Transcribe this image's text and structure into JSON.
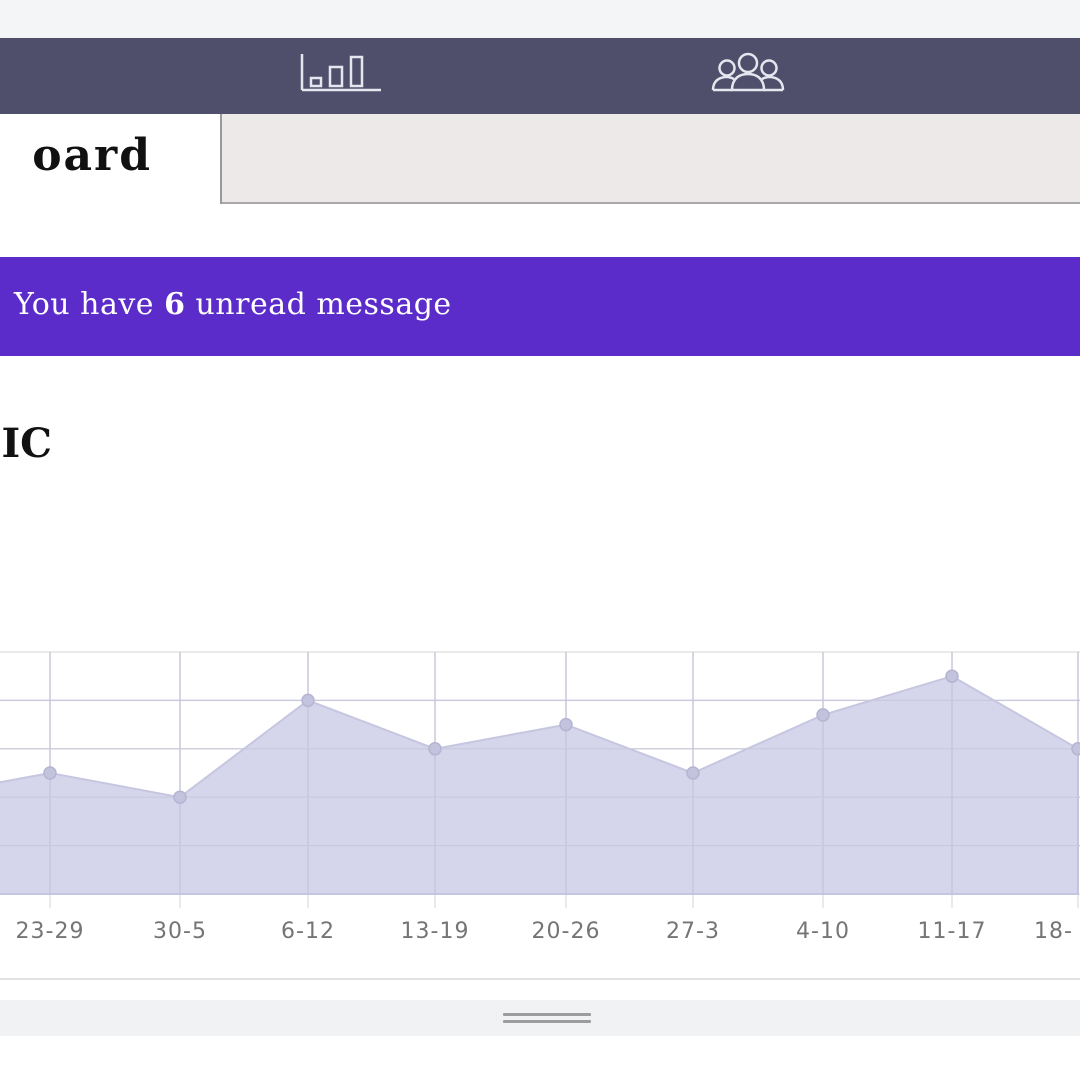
{
  "nav": {
    "icons": [
      "bar-chart-icon",
      "users-icon"
    ]
  },
  "tabs": {
    "active_label": "oard"
  },
  "banner": {
    "prefix": "You have ",
    "count": "6",
    "suffix": " unread message",
    "color": "#5b2cc9"
  },
  "section": {
    "title": "IC"
  },
  "colors": {
    "nav_bg": "#4f4f6c",
    "area_fill": "#d3d3ea",
    "area_line": "#c6c6e0",
    "point": "#c3c3dd"
  },
  "chart_data": {
    "type": "area",
    "categories": [
      "",
      "23-29",
      "30-5",
      "6-12",
      "13-19",
      "20-26",
      "27-3",
      "4-10",
      "11-17",
      "18-"
    ],
    "values": [
      2.0,
      2.5,
      2.0,
      4.0,
      3.0,
      3.5,
      2.5,
      3.7,
      4.5,
      3.0
    ],
    "ylim": [
      0,
      5
    ],
    "grid": true,
    "legend": "none"
  }
}
